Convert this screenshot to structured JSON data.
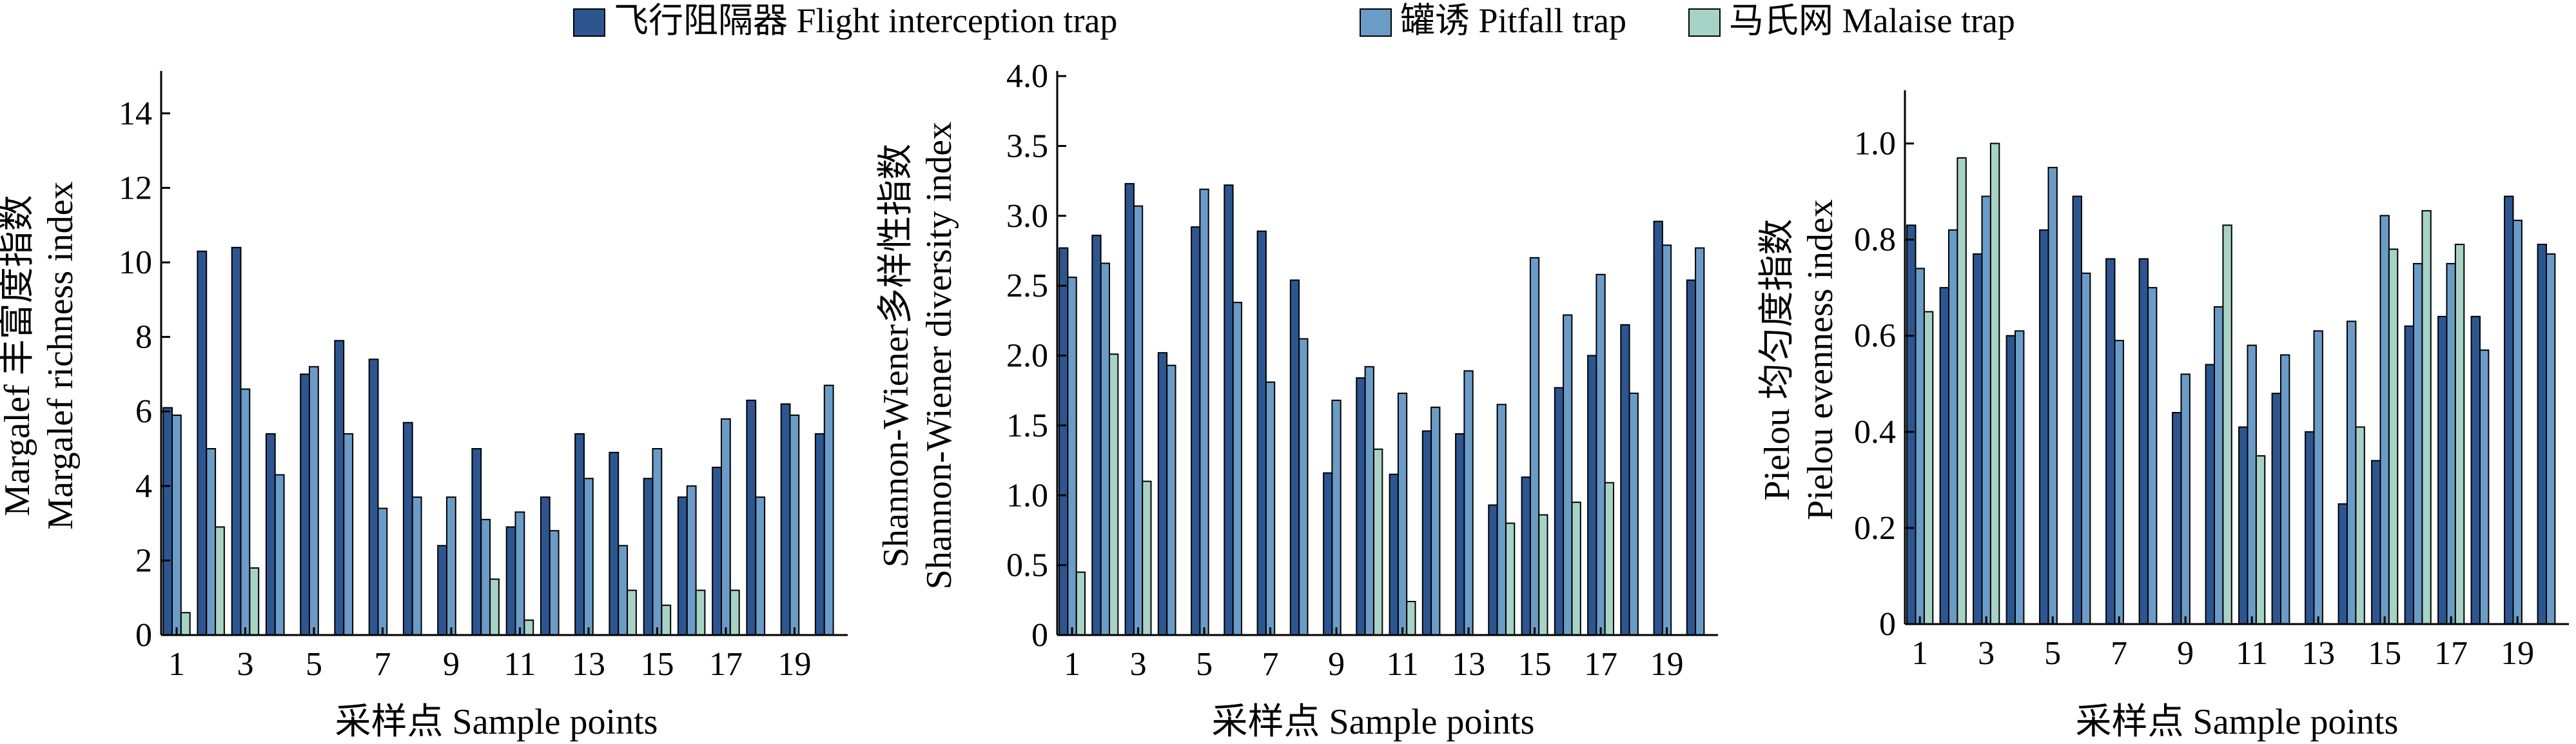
{
  "colors": {
    "flight": "#2d5691",
    "pitfall": "#6b9cc7",
    "malaise": "#a7d3c6",
    "axis": "#000000"
  },
  "legend": [
    {
      "label": "飞行阻隔器 Flight interception trap",
      "series": "flight"
    },
    {
      "label": "罐诱 Pitfall trap",
      "series": "pitfall"
    },
    {
      "label": "马氏网 Malaise trap",
      "series": "malaise"
    }
  ],
  "chart_data": [
    {
      "type": "bar",
      "xlabel": "采样点 Sample points",
      "ylabel": [
        "Margalef 丰富度指数",
        "Margalef richness index"
      ],
      "ylim": [
        0,
        15
      ],
      "yticks": [
        "0",
        "2",
        "4",
        "6",
        "8",
        "10",
        "12",
        "14"
      ],
      "ytick_values": [
        0,
        2,
        4,
        6,
        8,
        10,
        12,
        14
      ],
      "xticks": [
        "1",
        "3",
        "5",
        "7",
        "9",
        "11",
        "13",
        "15",
        "17",
        "19"
      ],
      "categories": [
        1,
        2,
        3,
        4,
        5,
        6,
        7,
        8,
        9,
        10,
        11,
        12,
        13,
        14,
        15,
        16,
        17,
        18,
        19,
        20
      ],
      "series": [
        {
          "name": "飞行阻隔器 Flight interception trap",
          "key": "flight",
          "values": [
            6.1,
            10.3,
            10.4,
            5.4,
            7.0,
            7.9,
            7.4,
            5.7,
            2.4,
            5.0,
            2.9,
            3.7,
            5.4,
            4.9,
            4.2,
            3.7,
            4.5,
            6.3,
            6.2,
            5.4
          ]
        },
        {
          "name": "罐诱 Pitfall trap",
          "key": "pitfall",
          "values": [
            5.9,
            5.0,
            6.6,
            4.3,
            7.2,
            5.4,
            3.4,
            3.7,
            3.7,
            3.1,
            3.3,
            2.8,
            4.2,
            2.4,
            5.0,
            4.0,
            5.8,
            3.7,
            5.9,
            6.7
          ]
        },
        {
          "name": "马氏网 Malaise trap",
          "key": "malaise",
          "values": [
            0.6,
            2.9,
            1.8,
            0,
            0,
            0,
            0,
            0,
            0,
            1.5,
            0.4,
            0,
            0,
            1.2,
            0.8,
            1.2,
            1.2,
            0,
            0,
            0
          ]
        }
      ]
    },
    {
      "type": "bar",
      "xlabel": "采样点 Sample points",
      "ylabel": [
        "Shannon-Wiener多样性指数",
        "Shannon-Wiener diversity index"
      ],
      "ylim": [
        0,
        4.0
      ],
      "yticks": [
        "0",
        "0.5",
        "1.0",
        "1.5",
        "2.0",
        "2.5",
        "3.0",
        "3.5",
        "4.0"
      ],
      "ytick_values": [
        0,
        0.5,
        1.0,
        1.5,
        2.0,
        2.5,
        3.0,
        3.5,
        4.0
      ],
      "xticks": [
        "1",
        "3",
        "5",
        "7",
        "9",
        "11",
        "13",
        "15",
        "17",
        "19"
      ],
      "categories": [
        1,
        2,
        3,
        4,
        5,
        6,
        7,
        8,
        9,
        10,
        11,
        12,
        13,
        14,
        15,
        16,
        17,
        18,
        19,
        20
      ],
      "series": [
        {
          "name": "飞行阻隔器 Flight interception trap",
          "key": "flight",
          "values": [
            2.77,
            2.86,
            3.23,
            2.02,
            2.92,
            3.22,
            2.89,
            2.54,
            1.16,
            1.84,
            1.15,
            1.46,
            1.44,
            0.93,
            1.13,
            1.77,
            2.0,
            2.22,
            2.96,
            2.54
          ]
        },
        {
          "name": "罐诱 Pitfall trap",
          "key": "pitfall",
          "values": [
            2.56,
            2.66,
            3.07,
            1.93,
            3.19,
            2.38,
            1.81,
            2.12,
            1.68,
            1.92,
            1.73,
            1.63,
            1.89,
            1.65,
            2.7,
            2.29,
            2.58,
            1.73,
            2.79,
            2.77
          ]
        },
        {
          "name": "马氏网 Malaise trap",
          "key": "malaise",
          "values": [
            0.45,
            2.01,
            1.1,
            0,
            0,
            0,
            0,
            0,
            0,
            1.33,
            0.24,
            0,
            0,
            0.8,
            0.86,
            0.95,
            1.09,
            0,
            0,
            0
          ]
        }
      ]
    },
    {
      "type": "bar",
      "xlabel": "采样点 Sample points",
      "ylabel": [
        "Pielou 均匀度指数",
        "Pielou evenness index"
      ],
      "ylim": [
        0,
        1.1
      ],
      "yticks": [
        "0",
        "0.2",
        "0.4",
        "0.6",
        "0.8",
        "1.0"
      ],
      "ytick_values": [
        0,
        0.2,
        0.4,
        0.6,
        0.8,
        1.0
      ],
      "xticks": [
        "1",
        "3",
        "5",
        "7",
        "9",
        "11",
        "13",
        "15",
        "17",
        "19"
      ],
      "categories": [
        1,
        2,
        3,
        4,
        5,
        6,
        7,
        8,
        9,
        10,
        11,
        12,
        13,
        14,
        15,
        16,
        17,
        18,
        19,
        20
      ],
      "series": [
        {
          "name": "飞行阻隔器 Flight interception trap",
          "key": "flight",
          "values": [
            0.83,
            0.7,
            0.77,
            0.6,
            0.82,
            0.89,
            0.76,
            0.76,
            0.44,
            0.54,
            0.41,
            0.48,
            0.4,
            0.25,
            0.34,
            0.62,
            0.64,
            0.64,
            0.89,
            0.79
          ]
        },
        {
          "name": "罐诱 Pitfall trap",
          "key": "pitfall",
          "values": [
            0.74,
            0.82,
            0.89,
            0.61,
            0.95,
            0.73,
            0.59,
            0.7,
            0.52,
            0.66,
            0.58,
            0.56,
            0.61,
            0.63,
            0.85,
            0.75,
            0.75,
            0.57,
            0.84,
            0.77
          ]
        },
        {
          "name": "马氏网 Malaise trap",
          "key": "malaise",
          "values": [
            0.65,
            0.97,
            1.0,
            0,
            0,
            0,
            0,
            0,
            0,
            0.83,
            0.35,
            0,
            0,
            0.41,
            0.78,
            0.86,
            0.79,
            0,
            0,
            0
          ]
        }
      ]
    }
  ]
}
